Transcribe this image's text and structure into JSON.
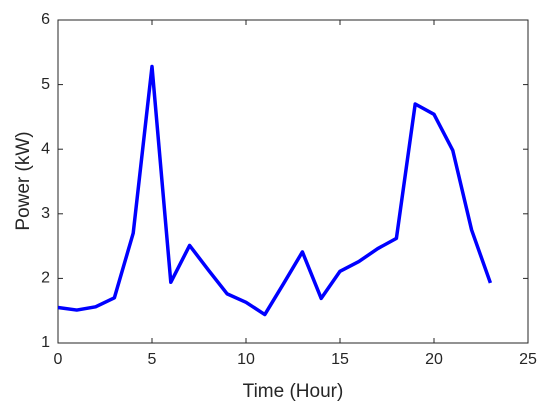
{
  "chart_data": {
    "type": "line",
    "x_label": "Time (Hour)",
    "y_label": "Power (kW)",
    "x": [
      0,
      1,
      2,
      3,
      4,
      5,
      6,
      7,
      8,
      9,
      10,
      11,
      12,
      13,
      14,
      15,
      16,
      17,
      18,
      19,
      20,
      21,
      22,
      23
    ],
    "values": [
      1.55,
      1.51,
      1.56,
      1.7,
      2.7,
      5.28,
      1.94,
      2.51,
      2.13,
      1.76,
      1.63,
      1.44,
      1.92,
      2.41,
      1.69,
      2.11,
      2.26,
      2.46,
      2.62,
      4.7,
      4.54,
      3.98,
      2.75,
      1.93
    ],
    "color": "#0000ff",
    "xlim": [
      0,
      25
    ],
    "xticks": [
      0,
      5,
      10,
      15,
      20,
      25
    ],
    "ylim": [
      1,
      6
    ],
    "yticks": [
      1,
      2,
      3,
      4,
      5,
      6
    ],
    "grid": false
  }
}
